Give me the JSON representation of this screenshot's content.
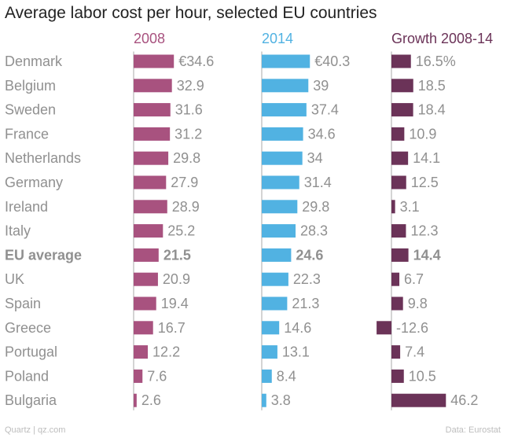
{
  "title": "Average labor cost per hour, selected EU countries",
  "footer": {
    "source_left": "Quartz | qz.com",
    "source_right": "Data: Eurostat"
  },
  "colors": {
    "series_2008": "#a8527f",
    "series_2014": "#51b2e2",
    "series_growth": "#6b3358",
    "axis": "#aaaaaa",
    "label": "#909090"
  },
  "chart_data": {
    "type": "bar",
    "orientation": "horizontal",
    "title": "Average labor cost per hour, selected EU countries",
    "categories": [
      "Denmark",
      "Belgium",
      "Sweden",
      "France",
      "Netherlands",
      "Germany",
      "Ireland",
      "Italy",
      "EU average",
      "UK",
      "Spain",
      "Greece",
      "Portugal",
      "Poland",
      "Bulgaria"
    ],
    "highlight_category": "EU average",
    "series": [
      {
        "name": "2008",
        "values": [
          34.6,
          32.9,
          31.6,
          31.2,
          29.8,
          27.9,
          28.9,
          25.2,
          21.5,
          20.9,
          19.4,
          16.7,
          12.2,
          7.6,
          2.6
        ],
        "labels": [
          "€34.6",
          "32.9",
          "31.6",
          "31.2",
          "29.8",
          "27.9",
          "28.9",
          "25.2",
          "21.5",
          "20.9",
          "19.4",
          "16.7",
          "12.2",
          "7.6",
          "2.6"
        ]
      },
      {
        "name": "2014",
        "values": [
          40.3,
          39,
          37.4,
          34.6,
          34,
          31.4,
          29.8,
          28.3,
          24.6,
          22.3,
          21.3,
          14.6,
          13.1,
          8.4,
          3.8
        ],
        "labels": [
          "€40.3",
          "39",
          "37.4",
          "34.6",
          "34",
          "31.4",
          "29.8",
          "28.3",
          "24.6",
          "22.3",
          "21.3",
          "14.6",
          "13.1",
          "8.4",
          "3.8"
        ]
      },
      {
        "name": "Growth 2008-14",
        "values": [
          16.5,
          18.5,
          18.4,
          10.9,
          14.1,
          12.5,
          3.1,
          12.3,
          14.4,
          6.7,
          9.8,
          -12.6,
          7.4,
          10.5,
          46.2
        ],
        "labels": [
          "16.5%",
          "18.5",
          "18.4",
          "10.9",
          "14.1",
          "12.5",
          "3.1",
          "12.3",
          "14.4",
          "6.7",
          "9.8",
          "-12.6",
          "7.4",
          "10.5",
          "46.2"
        ]
      }
    ]
  }
}
